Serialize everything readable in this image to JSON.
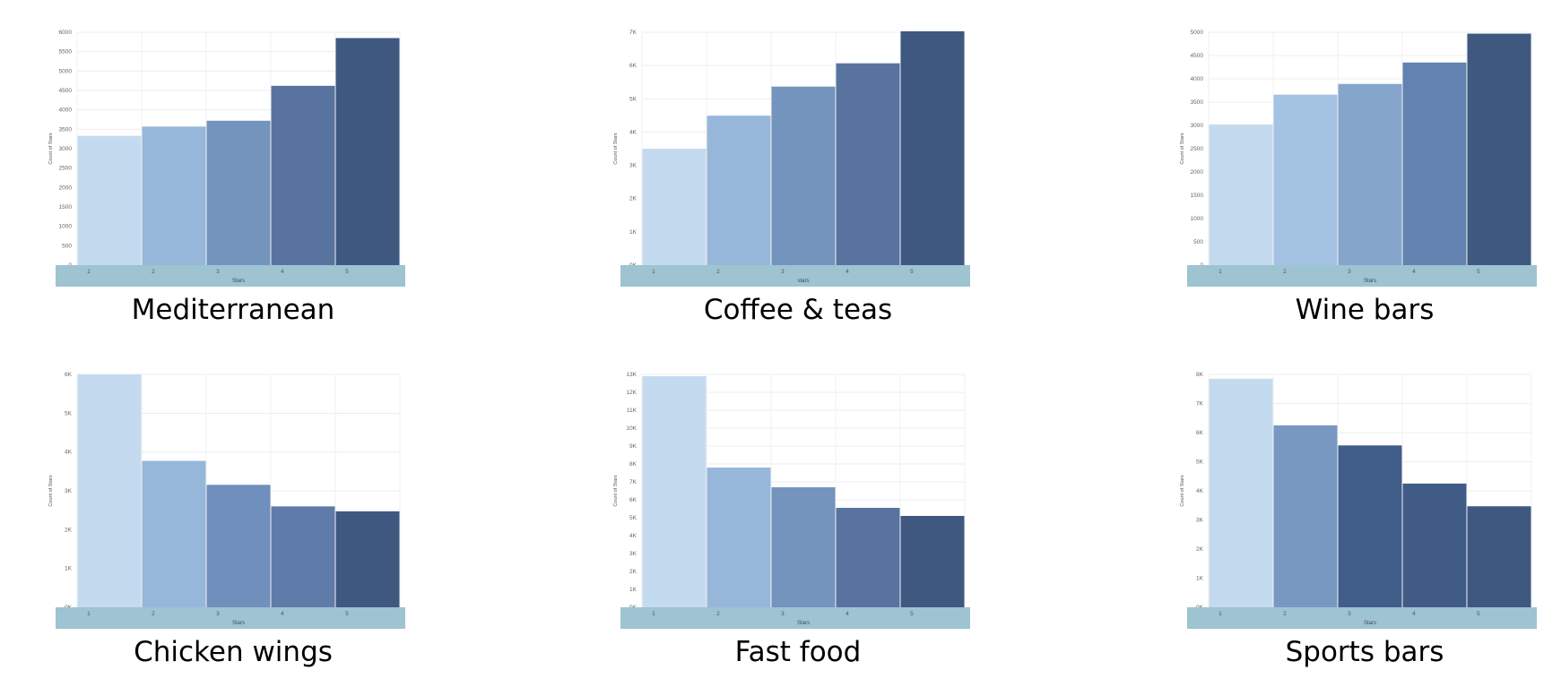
{
  "chart_data": [
    {
      "type": "bar",
      "title": "Mediterranean",
      "xlabel": "Stars",
      "ylabel": "Count of Stars",
      "categories": [
        "1",
        "2",
        "3",
        "4",
        "5"
      ],
      "values": [
        3330,
        3570,
        3720,
        4620,
        5850
      ],
      "ylim": [
        0,
        6000
      ],
      "yticks": [
        "0",
        "500",
        "1000",
        "1500",
        "2000",
        "2500",
        "3000",
        "3500",
        "4000",
        "4500",
        "5000",
        "5500",
        "6000"
      ],
      "colors": [
        "#c4dbef",
        "#97b7da",
        "#7394bd",
        "#5873a0",
        "#3e5880"
      ],
      "grid": true
    },
    {
      "type": "bar",
      "title": "Coffee & teas",
      "xlabel": "stars",
      "ylabel": "Count of Stars",
      "categories": [
        "1",
        "2",
        "3",
        "4",
        "5"
      ],
      "values": [
        3600,
        4620,
        5520,
        6240,
        7230
      ],
      "ylim": [
        0,
        7200
      ],
      "yticks": [
        "0K",
        "1K",
        "2K",
        "3K",
        "4K",
        "5K",
        "6K",
        "7K"
      ],
      "colors": [
        "#c4dbef",
        "#97b7da",
        "#7394bd",
        "#5873a0",
        "#3e5880"
      ],
      "grid": true
    },
    {
      "type": "bar",
      "title": "Wine bars",
      "xlabel": "Stars",
      "ylabel": "Count of Stars",
      "categories": [
        "1",
        "2",
        "3",
        "4",
        "5"
      ],
      "values": [
        3020,
        3660,
        3890,
        4350,
        4970
      ],
      "ylim": [
        0,
        5000
      ],
      "yticks": [
        "0",
        "500",
        "1000",
        "1500",
        "2000",
        "2500",
        "3000",
        "3500",
        "4000",
        "4500",
        "5000"
      ],
      "colors": [
        "#c4dbef",
        "#a4c2e1",
        "#85a5cb",
        "#6282af",
        "#3e5880"
      ],
      "grid": true
    },
    {
      "type": "bar",
      "title": "Chicken wings",
      "xlabel": "Stars",
      "ylabel": "Count of Stars",
      "categories": [
        "1",
        "2",
        "3",
        "4",
        "5"
      ],
      "values": [
        6600,
        4150,
        3470,
        2860,
        2720
      ],
      "ylim": [
        0,
        6600
      ],
      "yticks": [
        "0K",
        "1K",
        "2K",
        "3K",
        "4K",
        "5K",
        "6K"
      ],
      "colors": [
        "#c4dbef",
        "#97b7da",
        "#6f8fbc",
        "#5e7ba9",
        "#3e5880"
      ],
      "grid": true
    },
    {
      "type": "bar",
      "title": "Fast food",
      "xlabel": "Stars",
      "ylabel": "Count of Stars",
      "categories": [
        "1",
        "2",
        "3",
        "4",
        "5"
      ],
      "values": [
        12900,
        7800,
        6700,
        5550,
        5100
      ],
      "ylim": [
        0,
        13000
      ],
      "yticks": [
        "0K",
        "1K",
        "2K",
        "3K",
        "4K",
        "5K",
        "6K",
        "7K",
        "8K",
        "9K",
        "10K",
        "11K",
        "12K",
        "13K"
      ],
      "colors": [
        "#c4dbef",
        "#97b7da",
        "#7394bd",
        "#5873a0",
        "#3e5880"
      ],
      "grid": true
    },
    {
      "type": "bar",
      "title": "Sports bars",
      "xlabel": "Stars",
      "ylabel": "Count of Stars",
      "categories": [
        "1",
        "2",
        "3",
        "4",
        "5"
      ],
      "values": [
        7850,
        6250,
        5560,
        4250,
        3470
      ],
      "ylim": [
        0,
        8000
      ],
      "yticks": [
        "0K",
        "1K",
        "2K",
        "3K",
        "4K",
        "5K",
        "6K",
        "7K",
        "8K"
      ],
      "colors": [
        "#c4dbef",
        "#7898c1",
        "#415d89",
        "#415b87",
        "#3e5880"
      ],
      "grid": true
    }
  ]
}
